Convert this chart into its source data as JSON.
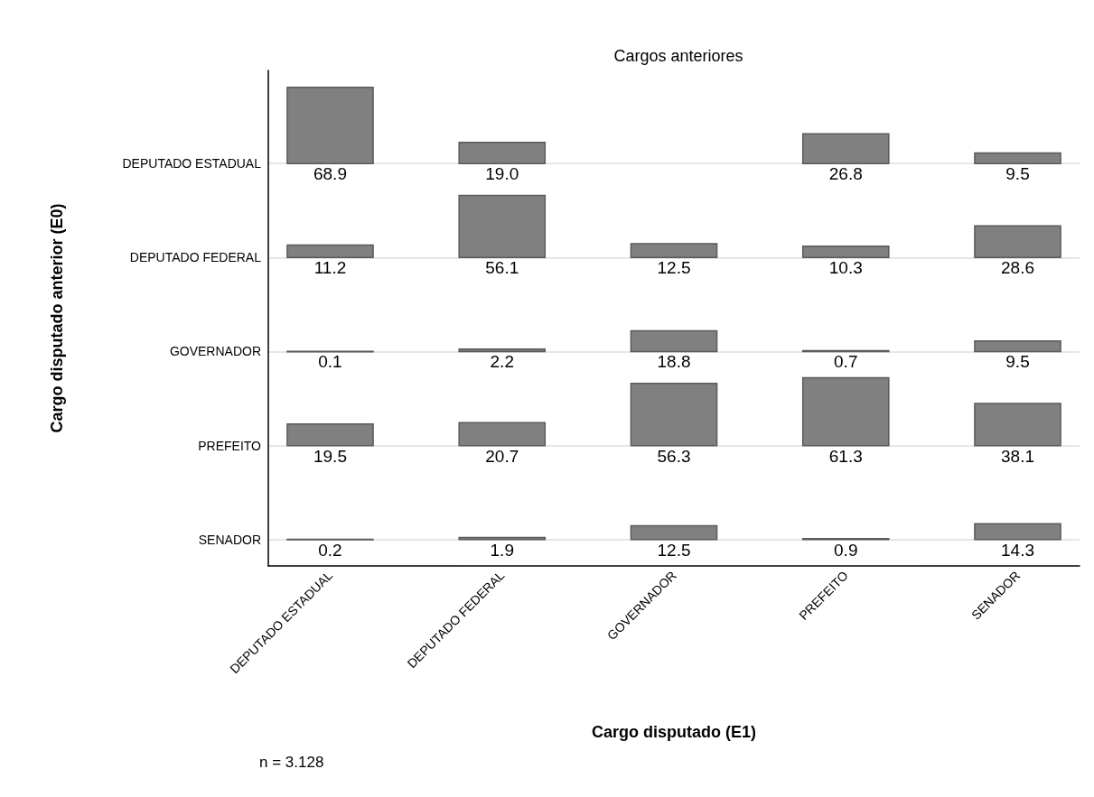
{
  "chart_data": {
    "type": "heatmap",
    "title": "Cargos anteriores",
    "xlabel": "Cargo disputado (E1)",
    "ylabel": "Cargo disputado anterior (E0)",
    "categories": [
      "DEPUTADO ESTADUAL",
      "DEPUTADO FEDERAL",
      "GOVERNADOR",
      "PREFEITO",
      "SENADOR"
    ],
    "y_categories": [
      "DEPUTADO ESTADUAL",
      "DEPUTADO FEDERAL",
      "GOVERNADOR",
      "PREFEITO",
      "SENADOR"
    ],
    "cells": [
      [
        68.9,
        19.0,
        null,
        26.8,
        9.5
      ],
      [
        11.2,
        56.1,
        12.5,
        10.3,
        28.6
      ],
      [
        0.1,
        2.2,
        18.8,
        0.7,
        9.5
      ],
      [
        19.5,
        20.7,
        56.3,
        61.3,
        38.1
      ],
      [
        0.2,
        1.9,
        12.5,
        0.9,
        14.3
      ]
    ],
    "cell_labels": [
      [
        "68.9",
        "19.0",
        null,
        "26.8",
        "9.5"
      ],
      [
        "11.2",
        "56.1",
        "12.5",
        "10.3",
        "28.6"
      ],
      [
        "0.1",
        "2.2",
        "18.8",
        "0.7",
        "9.5"
      ],
      [
        "19.5",
        "20.7",
        "56.3",
        "61.3",
        "38.1"
      ],
      [
        "0.2",
        "1.9",
        "12.5",
        "0.9",
        "14.3"
      ]
    ],
    "color": "#808080",
    "grid": "y",
    "annotations": [
      "n = 3.128"
    ]
  }
}
